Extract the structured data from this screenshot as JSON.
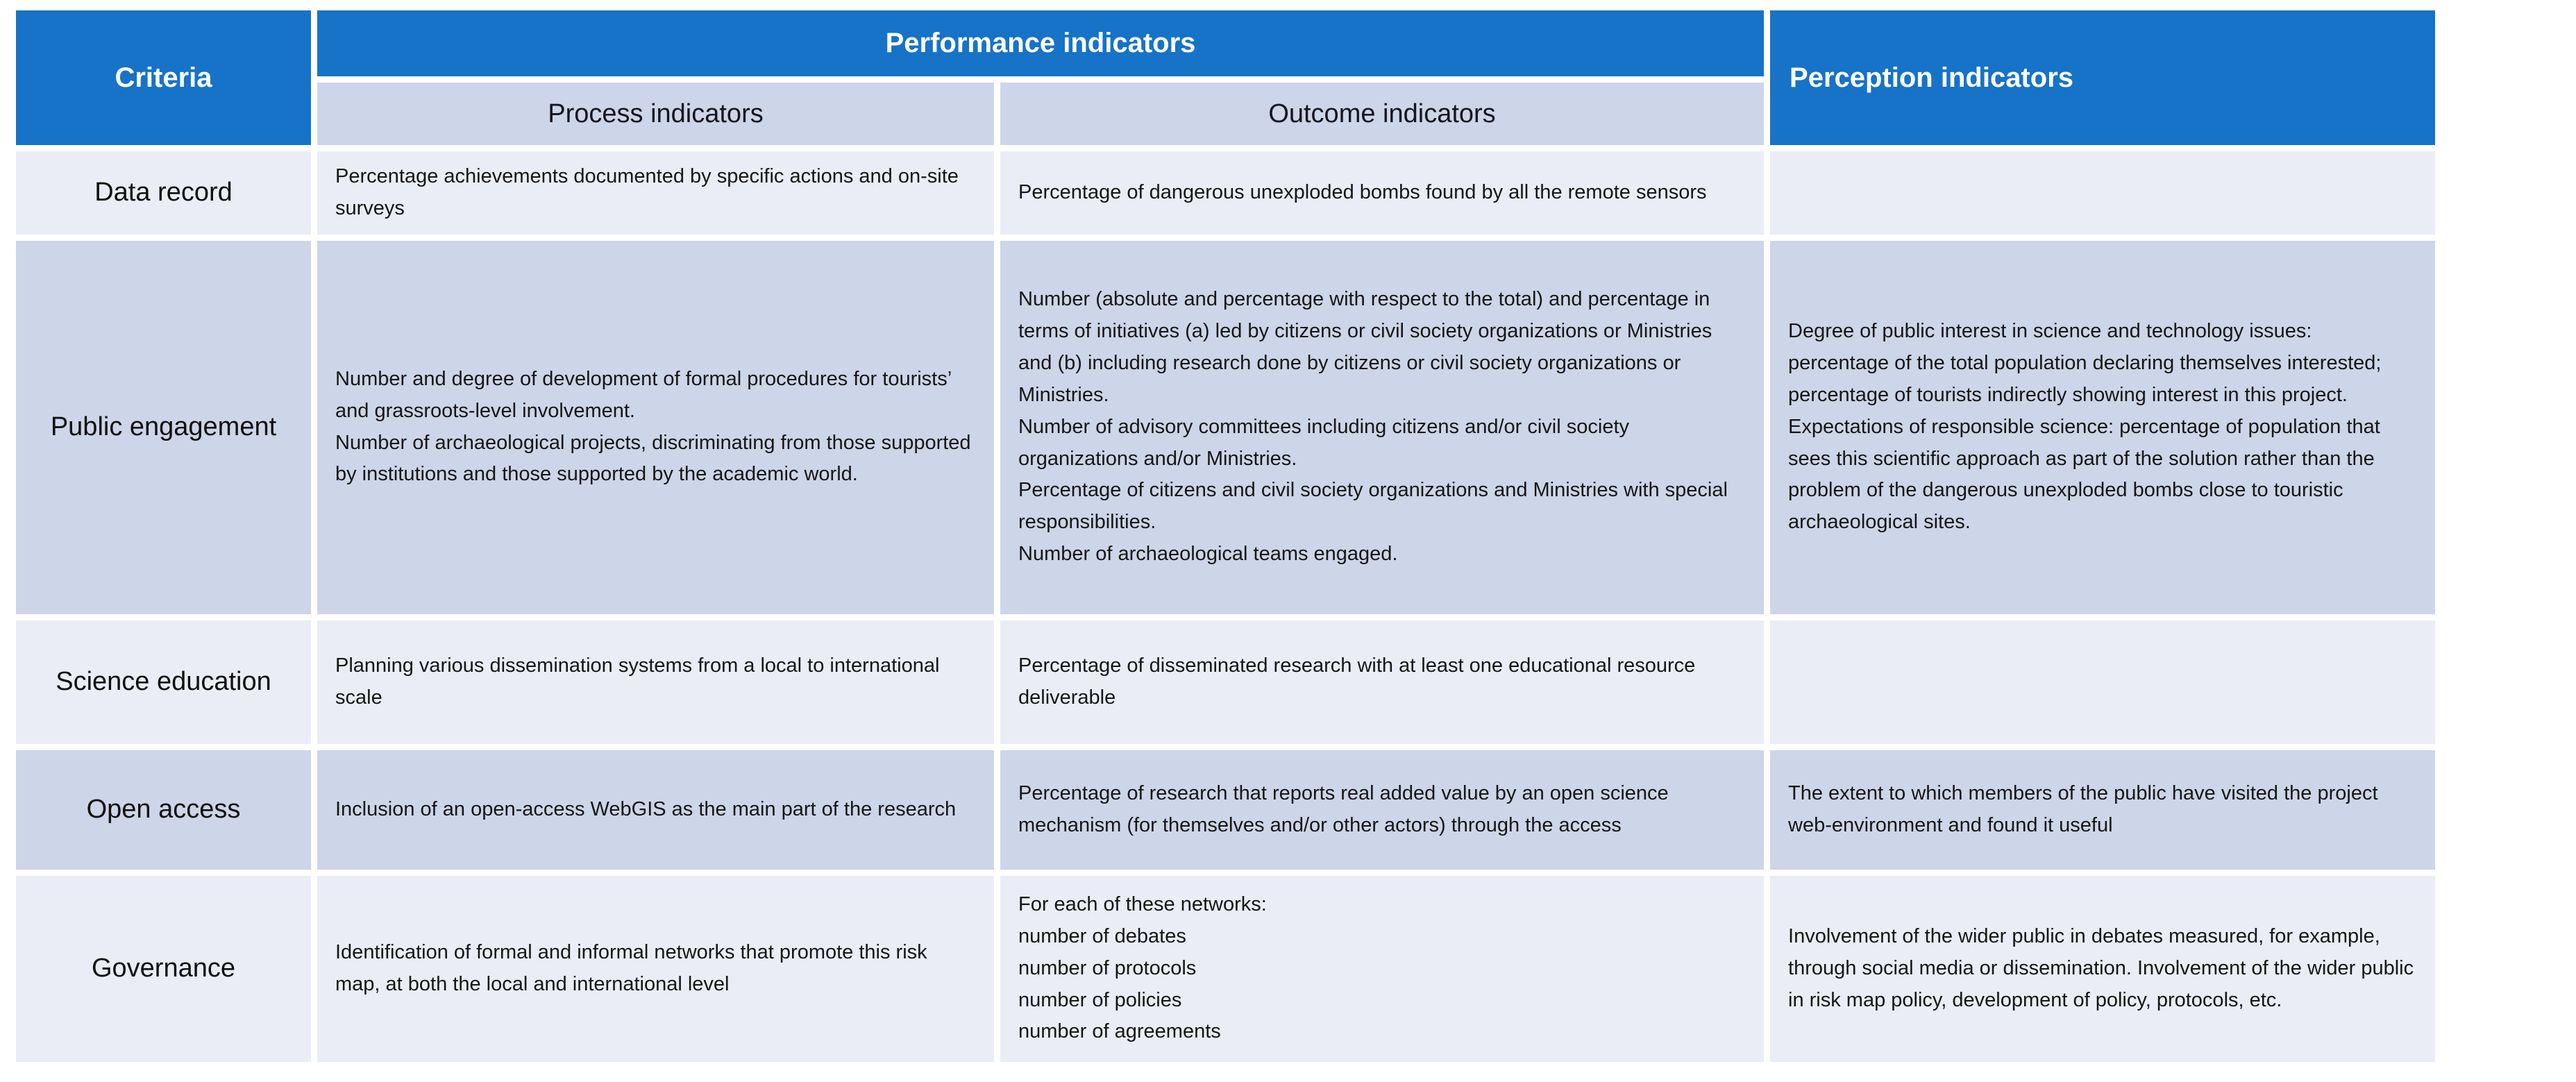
{
  "table": {
    "colors": {
      "header_blue": "#1673C7",
      "band_dark": "#CDD5E8",
      "band_light": "#EAEDF6",
      "header_text": "#FFFFFF",
      "body_text": "#161616"
    },
    "header": {
      "criteria": "Criteria",
      "performance": "Performance indicators",
      "process": "Process indicators",
      "outcome": "Outcome indicators",
      "perception": "Perception indicators"
    },
    "rows": [
      {
        "criteria": "Data record",
        "process": "Percentage achievements documented by specific actions and on-site surveys",
        "outcome": "Percentage of dangerous unexploded bombs found by all the remote sensors",
        "perception": ""
      },
      {
        "criteria": "Public engagement",
        "process": "Number and degree of development of formal procedures for tourists’ and grassroots-level involvement.\nNumber of archaeological projects, discriminating from those supported by institutions and those supported by the academic world.",
        "outcome": "Number (absolute and percentage with respect to the total) and percentage in terms of initiatives (a) led by citizens or civil society organizations or Ministries and (b) including research done by citizens or civil society organizations or Ministries.\nNumber of advisory committees including citizens and/or civil society organizations and/or Ministries.\n Percentage of citizens and civil society organizations and Ministries with special responsibilities.\nNumber of archaeological teams engaged.",
        "perception": "Degree of public interest in science and technology issues: percentage of the total population declaring themselves interested; percentage of tourists indirectly showing interest in this project.\nExpectations of responsible science: percentage of population that sees this scientific approach as part of the solution rather than the problem of the dangerous unexploded bombs close to touristic archaeological sites."
      },
      {
        "criteria": "Science education",
        "process": "Planning various dissemination systems from a local to international scale",
        "outcome": "Percentage of disseminated research with at least one educational resource deliverable",
        "perception": ""
      },
      {
        "criteria": "Open access",
        "process": "Inclusion of an open-access WebGIS as the main part of the research",
        "outcome": "Percentage of research that reports real added value by an open science mechanism (for themselves and/or other actors) through the access",
        "perception": "The extent to which members of the public have visited the project web-environment and found it useful"
      },
      {
        "criteria": "Governance",
        "process": "Identification of formal and informal networks that promote this risk map, at both the local and international level",
        "outcome": "For each of these networks:\nnumber of debates\nnumber of protocols\nnumber of policies\nnumber of agreements",
        "perception": "Involvement of the wider public in debates measured, for example, through social media or dissemination. Involvement of the wider public in risk map policy, development of policy, protocols, etc."
      }
    ]
  }
}
